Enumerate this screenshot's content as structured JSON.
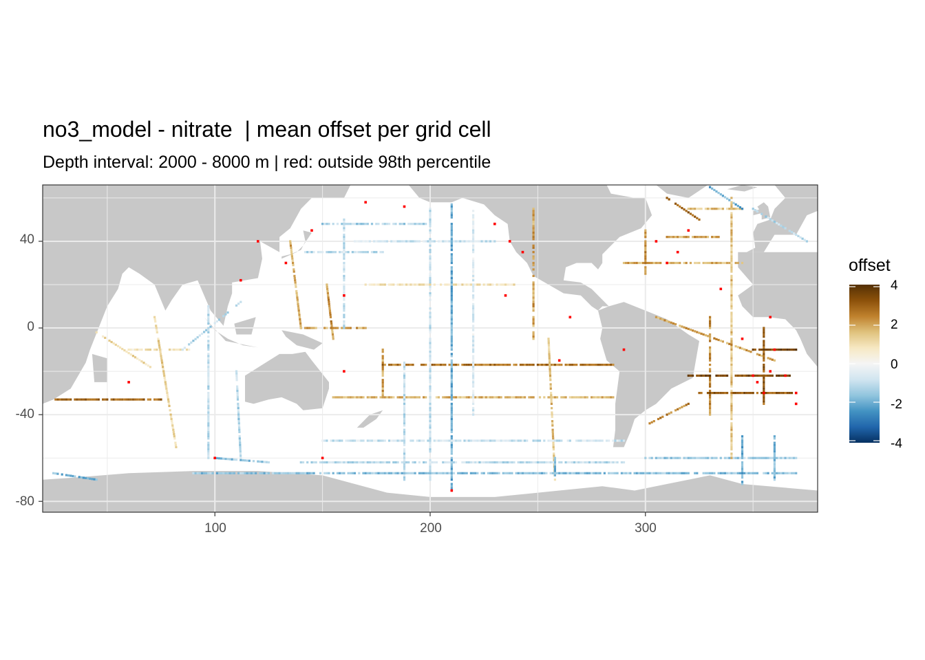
{
  "title": "no3_model - nitrate  | mean offset per grid cell",
  "subtitle": "Depth interval: 2000 - 8000 m | red: outside 98th percentile",
  "chart_data": {
    "type": "heatmap",
    "x_ticks": [
      100,
      200,
      300
    ],
    "y_ticks": [
      40,
      0,
      -40,
      -80
    ],
    "x_tick_labels": [
      "100",
      "200",
      "300"
    ],
    "y_tick_labels": [
      "40",
      "0",
      "-40",
      "-80"
    ],
    "xlim": [
      20,
      380
    ],
    "ylim": [
      -85,
      66
    ],
    "grid": true,
    "legend": {
      "title": "offset",
      "position": "right",
      "range": [
        -4,
        4
      ],
      "ticks": [
        4,
        2,
        0,
        -2,
        -4
      ],
      "tick_labels": [
        "4",
        "2",
        "0",
        "-2",
        "-4"
      ],
      "outlier_color": "#ff0000"
    },
    "colors": {
      "land": "#c8c8c8",
      "ocean": "#ffffff",
      "gridline": "#ebebeb",
      "scale": [
        "#053061",
        "#2166ac",
        "#4393c3",
        "#92c5de",
        "#d1e5f0",
        "#f5f5f5",
        "#f6e8c3",
        "#dfc27d",
        "#bf812d",
        "#8c510a",
        "#543005"
      ]
    },
    "sections": [
      {
        "from": [
          25,
          -33
        ],
        "to": [
          75,
          -33
        ],
        "offset": 2.8
      },
      {
        "from": [
          25,
          -67
        ],
        "to": [
          45,
          -70
        ],
        "offset": -1.8
      },
      {
        "from": [
          45,
          -2
        ],
        "to": [
          70,
          -18
        ],
        "offset": 1.0
      },
      {
        "from": [
          60,
          -10
        ],
        "to": [
          88,
          -10
        ],
        "offset": 0.8
      },
      {
        "from": [
          72,
          5
        ],
        "to": [
          82,
          -55
        ],
        "offset": 1.2
      },
      {
        "from": [
          85,
          -10
        ],
        "to": [
          112,
          12
        ],
        "offset": -1.2
      },
      {
        "from": [
          97,
          10
        ],
        "to": [
          97,
          -60
        ],
        "offset": -1.0
      },
      {
        "from": [
          110,
          -20
        ],
        "to": [
          112,
          -60
        ],
        "offset": -1.2
      },
      {
        "from": [
          100,
          -60
        ],
        "to": [
          125,
          -62
        ],
        "offset": -1.5
      },
      {
        "from": [
          135,
          40
        ],
        "to": [
          140,
          0
        ],
        "offset": 1.8
      },
      {
        "from": [
          142,
          35
        ],
        "to": [
          178,
          35
        ],
        "offset": -1.0
      },
      {
        "from": [
          152,
          20
        ],
        "to": [
          155,
          -5
        ],
        "offset": 2.2
      },
      {
        "from": [
          140,
          0
        ],
        "to": [
          170,
          0
        ],
        "offset": 2.0
      },
      {
        "from": [
          150,
          48
        ],
        "to": [
          198,
          48
        ],
        "offset": -1.3
      },
      {
        "from": [
          160,
          50
        ],
        "to": [
          160,
          0
        ],
        "offset": -0.9
      },
      {
        "from": [
          165,
          40
        ],
        "to": [
          230,
          40
        ],
        "offset": -0.8
      },
      {
        "from": [
          170,
          20
        ],
        "to": [
          240,
          20
        ],
        "offset": 0.8
      },
      {
        "from": [
          178,
          -10
        ],
        "to": [
          178,
          -32
        ],
        "offset": 2.0
      },
      {
        "from": [
          178,
          -17
        ],
        "to": [
          285,
          -17
        ],
        "offset": 2.6
      },
      {
        "from": [
          155,
          -32
        ],
        "to": [
          285,
          -32
        ],
        "offset": 1.7
      },
      {
        "from": [
          188,
          -15
        ],
        "to": [
          188,
          -70
        ],
        "offset": -1.0
      },
      {
        "from": [
          200,
          55
        ],
        "to": [
          200,
          -70
        ],
        "offset": -0.9
      },
      {
        "from": [
          210,
          58
        ],
        "to": [
          210,
          -75
        ],
        "offset": -2.0
      },
      {
        "from": [
          220,
          55
        ],
        "to": [
          220,
          -40
        ],
        "offset": -0.5
      },
      {
        "from": [
          248,
          55
        ],
        "to": [
          248,
          -5
        ],
        "offset": 2.0
      },
      {
        "from": [
          255,
          -5
        ],
        "to": [
          258,
          -70
        ],
        "offset": 1.5
      },
      {
        "from": [
          258,
          -60
        ],
        "to": [
          258,
          -68
        ],
        "offset": -2.0
      },
      {
        "from": [
          150,
          -52
        ],
        "to": [
          290,
          -52
        ],
        "offset": -0.8
      },
      {
        "from": [
          140,
          -62
        ],
        "to": [
          290,
          -62
        ],
        "offset": -1.0
      },
      {
        "from": [
          90,
          -67
        ],
        "to": [
          370,
          -67
        ],
        "offset": -1.6
      },
      {
        "from": [
          290,
          30
        ],
        "to": [
          345,
          30
        ],
        "offset": 1.8
      },
      {
        "from": [
          300,
          25
        ],
        "to": [
          300,
          45
        ],
        "offset": 2.4
      },
      {
        "from": [
          310,
          60
        ],
        "to": [
          325,
          50
        ],
        "offset": 3.0
      },
      {
        "from": [
          320,
          55
        ],
        "to": [
          345,
          55
        ],
        "offset": 1.5
      },
      {
        "from": [
          310,
          42
        ],
        "to": [
          335,
          42
        ],
        "offset": 2.0
      },
      {
        "from": [
          330,
          65
        ],
        "to": [
          345,
          55
        ],
        "offset": -2.0
      },
      {
        "from": [
          340,
          60
        ],
        "to": [
          340,
          -60
        ],
        "offset": 1.5
      },
      {
        "from": [
          330,
          5
        ],
        "to": [
          330,
          -40
        ],
        "offset": 2.2
      },
      {
        "from": [
          305,
          5
        ],
        "to": [
          360,
          -15
        ],
        "offset": 2.0
      },
      {
        "from": [
          325,
          -30
        ],
        "to": [
          368,
          -30
        ],
        "offset": 3.0
      },
      {
        "from": [
          320,
          -22
        ],
        "to": [
          368,
          -22
        ],
        "offset": 3.4
      },
      {
        "from": [
          350,
          -10
        ],
        "to": [
          370,
          -10
        ],
        "offset": 3.5
      },
      {
        "from": [
          355,
          0
        ],
        "to": [
          355,
          -35
        ],
        "offset": 3.0
      },
      {
        "from": [
          300,
          -45
        ],
        "to": [
          320,
          -35
        ],
        "offset": 2.4
      },
      {
        "from": [
          300,
          -60
        ],
        "to": [
          370,
          -60
        ],
        "offset": -1.4
      },
      {
        "from": [
          345,
          -50
        ],
        "to": [
          345,
          -72
        ],
        "offset": -2.0
      },
      {
        "from": [
          360,
          -50
        ],
        "to": [
          360,
          -70
        ],
        "offset": -1.8
      },
      {
        "from": [
          350,
          55
        ],
        "to": [
          375,
          40
        ],
        "offset": -1.2
      }
    ],
    "outliers": [
      [
        170,
        58
      ],
      [
        188,
        56
      ],
      [
        230,
        48
      ],
      [
        237,
        40
      ],
      [
        243,
        35
      ],
      [
        145,
        45
      ],
      [
        112,
        22
      ],
      [
        120,
        40
      ],
      [
        133,
        30
      ],
      [
        160,
        15
      ],
      [
        235,
        15
      ],
      [
        265,
        5
      ],
      [
        260,
        -15
      ],
      [
        160,
        -20
      ],
      [
        210,
        -75
      ],
      [
        350,
        -22
      ],
      [
        352,
        -25
      ],
      [
        355,
        -30
      ],
      [
        358,
        -20
      ],
      [
        360,
        -10
      ],
      [
        358,
        5
      ],
      [
        365,
        -22
      ],
      [
        370,
        -30
      ],
      [
        345,
        -5
      ],
      [
        335,
        18
      ],
      [
        310,
        30
      ],
      [
        320,
        45
      ],
      [
        305,
        40
      ],
      [
        315,
        35
      ],
      [
        60,
        -25
      ],
      [
        100,
        -60
      ],
      [
        150,
        -60
      ],
      [
        290,
        -10
      ],
      [
        370,
        -35
      ]
    ]
  }
}
